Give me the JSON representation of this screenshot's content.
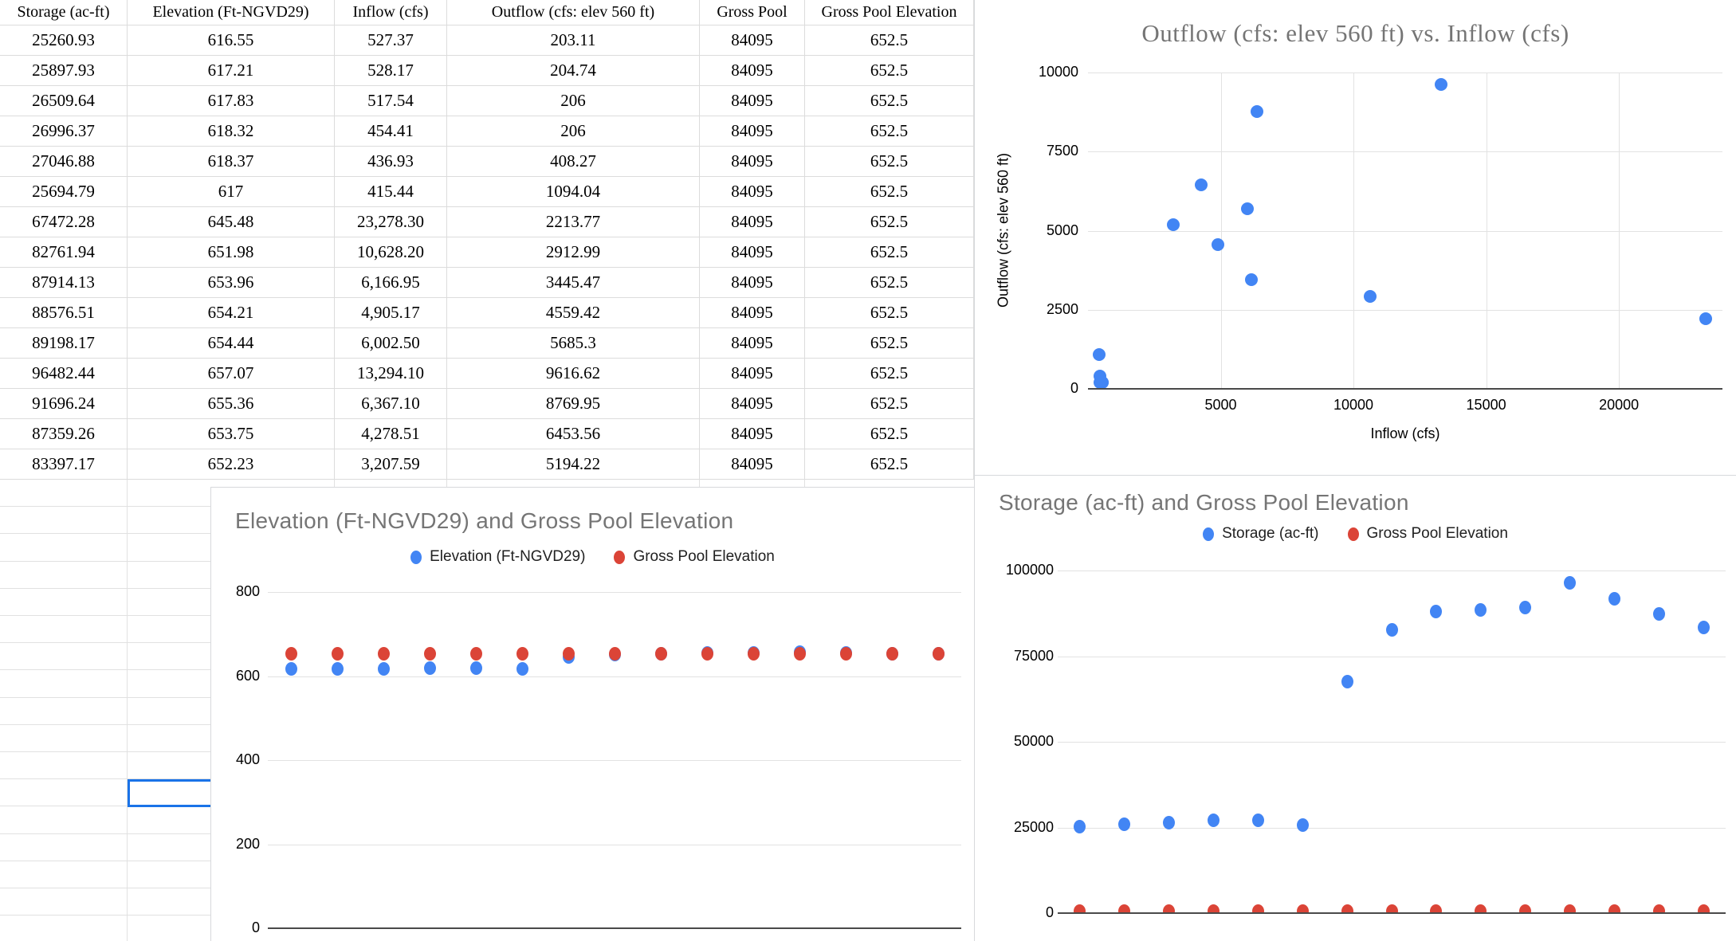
{
  "table": {
    "columns": [
      "Storage (ac-ft)",
      "Elevation (Ft-NGVD29)",
      "Inflow (cfs)",
      "Outflow (cfs: elev 560 ft)",
      "Gross Pool",
      "Gross Pool Elevation"
    ],
    "rows": [
      [
        "25260.93",
        "616.55",
        "527.37",
        "203.11",
        "84095",
        "652.5"
      ],
      [
        "25897.93",
        "617.21",
        "528.17",
        "204.74",
        "84095",
        "652.5"
      ],
      [
        "26509.64",
        "617.83",
        "517.54",
        "206",
        "84095",
        "652.5"
      ],
      [
        "26996.37",
        "618.32",
        "454.41",
        "206",
        "84095",
        "652.5"
      ],
      [
        "27046.88",
        "618.37",
        "436.93",
        "408.27",
        "84095",
        "652.5"
      ],
      [
        "25694.79",
        "617",
        "415.44",
        "1094.04",
        "84095",
        "652.5"
      ],
      [
        "67472.28",
        "645.48",
        "23,278.30",
        "2213.77",
        "84095",
        "652.5"
      ],
      [
        "82761.94",
        "651.98",
        "10,628.20",
        "2912.99",
        "84095",
        "652.5"
      ],
      [
        "87914.13",
        "653.96",
        "6,166.95",
        "3445.47",
        "84095",
        "652.5"
      ],
      [
        "88576.51",
        "654.21",
        "4,905.17",
        "4559.42",
        "84095",
        "652.5"
      ],
      [
        "89198.17",
        "654.44",
        "6,002.50",
        "5685.3",
        "84095",
        "652.5"
      ],
      [
        "96482.44",
        "657.07",
        "13,294.10",
        "9616.62",
        "84095",
        "652.5"
      ],
      [
        "91696.24",
        "655.36",
        "6,367.10",
        "8769.95",
        "84095",
        "652.5"
      ],
      [
        "87359.26",
        "653.75",
        "4,278.51",
        "6453.56",
        "84095",
        "652.5"
      ],
      [
        "83397.17",
        "652.23",
        "3,207.59",
        "5194.22",
        "84095",
        "652.5"
      ]
    ]
  },
  "chart_data": [
    {
      "type": "scatter",
      "title": "Outflow (cfs: elev 560 ft) vs. Inflow (cfs)",
      "xlabel": "Inflow (cfs)",
      "ylabel": "Outflow (cfs: elev 560 ft)",
      "xlim": [
        0,
        23900
      ],
      "ylim": [
        0,
        10000
      ],
      "x_ticks": [
        5000,
        10000,
        15000,
        20000
      ],
      "y_ticks": [
        0,
        2500,
        5000,
        7500,
        10000
      ],
      "grid": true,
      "legend_position": "none",
      "series": [
        {
          "name": "Outflow (cfs: elev 560 ft)",
          "color": "#4285f4",
          "points": [
            [
              527.37,
              203.11
            ],
            [
              528.17,
              204.74
            ],
            [
              517.54,
              206
            ],
            [
              454.41,
              206
            ],
            [
              436.93,
              408.27
            ],
            [
              415.44,
              1094.04
            ],
            [
              23278.3,
              2213.77
            ],
            [
              10628.2,
              2912.99
            ],
            [
              6166.95,
              3445.47
            ],
            [
              4905.17,
              4559.42
            ],
            [
              6002.5,
              5685.3
            ],
            [
              13294.1,
              9616.62
            ],
            [
              6367.1,
              8769.95
            ],
            [
              4278.51,
              6453.56
            ],
            [
              3207.59,
              5194.22
            ]
          ]
        }
      ]
    },
    {
      "type": "scatter",
      "title": "Elevation (Ft-NGVD29) and Gross Pool Elevation",
      "xlabel": "",
      "ylabel": "",
      "ylim": [
        0,
        800
      ],
      "y_ticks": [
        0,
        200,
        400,
        600,
        800
      ],
      "grid": true,
      "legend_position": "top",
      "series": [
        {
          "name": "Elevation (Ft-NGVD29)",
          "color": "#4285f4",
          "values": [
            616.55,
            617.21,
            617.83,
            618.32,
            618.37,
            617,
            645.48,
            651.98,
            653.96,
            654.21,
            654.44,
            657.07,
            655.36,
            653.75,
            652.23
          ]
        },
        {
          "name": "Gross Pool Elevation",
          "color": "#db4437",
          "values": [
            652.5,
            652.5,
            652.5,
            652.5,
            652.5,
            652.5,
            652.5,
            652.5,
            652.5,
            652.5,
            652.5,
            652.5,
            652.5,
            652.5,
            652.5
          ]
        }
      ]
    },
    {
      "type": "scatter",
      "title": "Storage (ac-ft) and Gross Pool Elevation",
      "xlabel": "",
      "ylabel": "",
      "ylim": [
        0,
        100000
      ],
      "y_ticks": [
        0,
        25000,
        50000,
        75000,
        100000
      ],
      "grid": true,
      "legend_position": "top",
      "series": [
        {
          "name": "Storage (ac-ft)",
          "color": "#4285f4",
          "values": [
            25260.93,
            25897.93,
            26509.64,
            26996.37,
            27046.88,
            25694.79,
            67472.28,
            82761.94,
            87914.13,
            88576.51,
            89198.17,
            96482.44,
            91696.24,
            87359.26,
            83397.17
          ]
        },
        {
          "name": "Gross Pool Elevation",
          "color": "#db4437",
          "values": [
            652.5,
            652.5,
            652.5,
            652.5,
            652.5,
            652.5,
            652.5,
            652.5,
            652.5,
            652.5,
            652.5,
            652.5,
            652.5,
            652.5,
            652.5
          ]
        }
      ]
    }
  ],
  "colors": {
    "series_blue": "#4285f4",
    "series_red": "#db4437",
    "selection_border": "#1a73e8",
    "sheet_gridline": "#dcdcdc",
    "chart_gridline": "#e2e2e2",
    "chart_axis": "#4a4a4a",
    "chart_border": "#d7d9dc",
    "chart_title_gray": "#757575"
  }
}
